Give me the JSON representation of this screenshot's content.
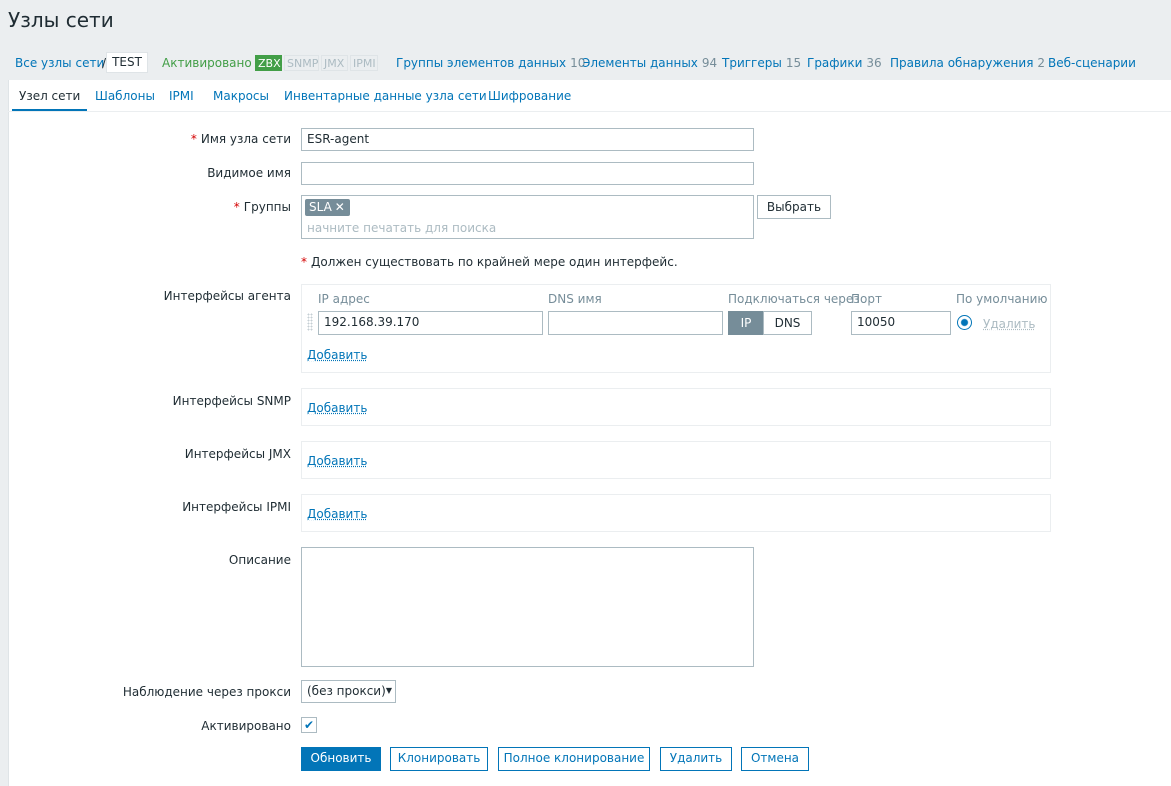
{
  "header": {
    "title": "Узлы сети"
  },
  "breadcrumbs": {
    "all_hosts": "Все узлы сети",
    "separator": "/",
    "host": "TEST",
    "status": "Активировано",
    "availability": [
      "ZBX",
      "SNMP",
      "JMX",
      "IPMI"
    ],
    "links": [
      {
        "label": "Группы элементов данных",
        "count": 10
      },
      {
        "label": "Элементы данных",
        "count": 94
      },
      {
        "label": "Триггеры",
        "count": 15
      },
      {
        "label": "Графики",
        "count": 36
      },
      {
        "label": "Правила обнаружения",
        "count": 2
      },
      {
        "label": "Веб-сценарии"
      }
    ]
  },
  "tabs": [
    "Узел сети",
    "Шаблоны",
    "IPMI",
    "Макросы",
    "Инвентарные данные узла сети",
    "Шифрование"
  ],
  "form": {
    "required_mark": "*",
    "host_name": {
      "label": "Имя узла сети",
      "value": "ESR-agent"
    },
    "visible_name": {
      "label": "Видимое имя"
    },
    "groups": {
      "label": "Группы",
      "tag": "SLA",
      "placeholder": "начните печатать для поиска",
      "button": "Выбрать"
    },
    "note": "Должен существовать по крайней мере один интерфейс.",
    "agent": {
      "label": "Интерфейсы агента",
      "columns": [
        "IP адрес",
        "DNS имя",
        "Подключаться через",
        "Порт",
        "По умолчанию"
      ],
      "ip": "192.168.39.170",
      "connect": [
        "IP",
        "DNS"
      ],
      "port": "10050",
      "remove": "Удалить",
      "add": "Добавить"
    },
    "snmp": {
      "label": "Интерфейсы SNMP",
      "add": "Добавить"
    },
    "jmx": {
      "label": "Интерфейсы JMX",
      "add": "Добавить"
    },
    "ipmi": {
      "label": "Интерфейсы IPMI",
      "add": "Добавить"
    },
    "description": {
      "label": "Описание"
    },
    "proxy": {
      "label": "Наблюдение через прокси",
      "value": "(без прокси)"
    },
    "enabled": {
      "label": "Активировано"
    },
    "buttons": [
      "Обновить",
      "Клонировать",
      "Полное клонирование",
      "Удалить",
      "Отмена"
    ]
  }
}
